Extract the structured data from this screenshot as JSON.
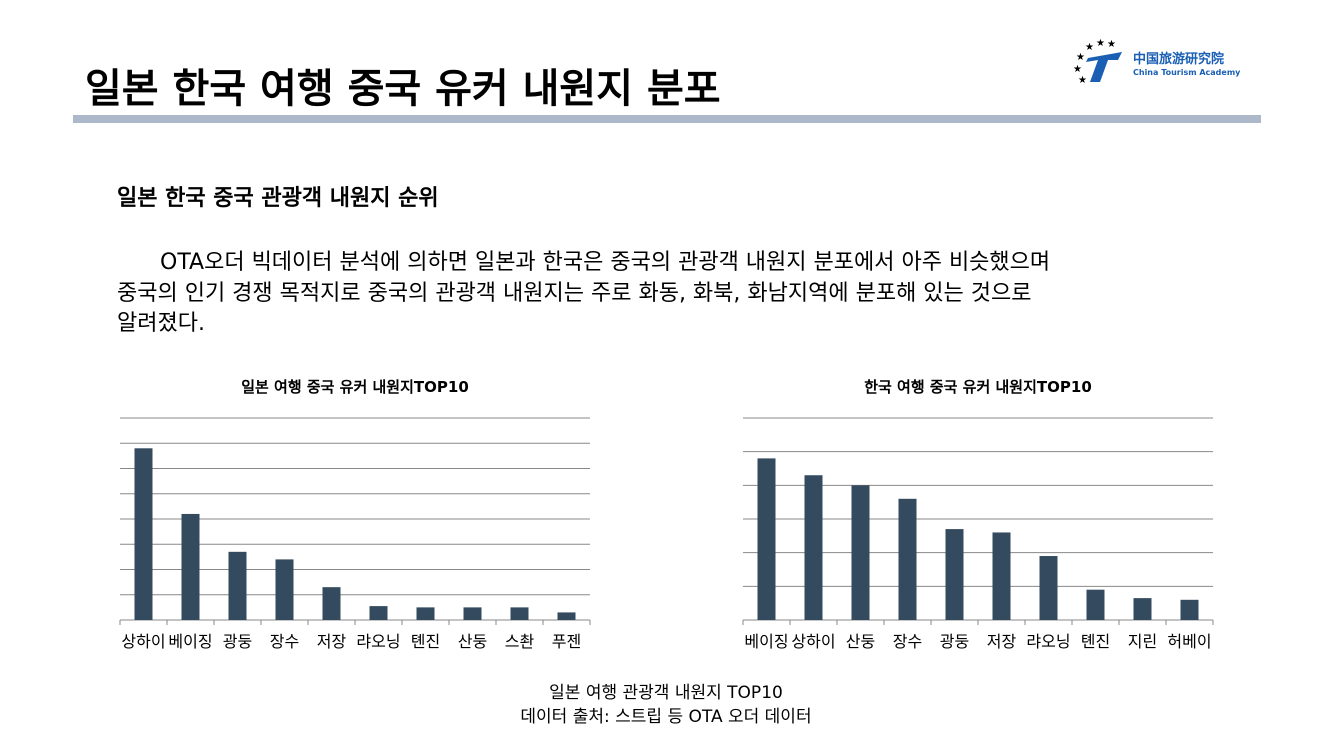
{
  "header": {
    "title": "일본 한국 여행 중국 유커 내원지 분포"
  },
  "logo": {
    "name_cn": "中国旅游研究院",
    "name_en": "China Tourism Academy"
  },
  "section": {
    "heading": "일본 한국 중국 관광객 내원지 순위",
    "paragraph": [
      "OTA오더 빅데이터 분석에 의하면 일본과 한국은 중국의 관광객 내원지 분포에서 아주 비슷했으며",
      "중국의 인기 경쟁 목적지로 중국의 관광객 내원지는 주로 화동, 화북, 화남지역에 분포해 있는 것으로",
      "알려졌다."
    ]
  },
  "chart_data": [
    {
      "type": "bar",
      "title": "일본 여행 중국 유커 내원지TOP10",
      "categories": [
        "상하이",
        "베이징",
        "광둥",
        "장수",
        "저장",
        "랴오닝",
        "톈진",
        "산둥",
        "스촨",
        "푸젠"
      ],
      "values": [
        6.8,
        4.2,
        2.7,
        2.4,
        1.3,
        0.55,
        0.5,
        0.5,
        0.5,
        0.3
      ],
      "color": "#344a5e",
      "ylim": [
        0,
        8
      ],
      "yticks": [
        0,
        1,
        2,
        3,
        4,
        5,
        6,
        7,
        8
      ],
      "grid": true
    },
    {
      "type": "bar",
      "title": "한국 여행 중국 유커 내원지TOP10",
      "categories": [
        "베이징",
        "상하이",
        "산둥",
        "장수",
        "광둥",
        "저장",
        "랴오닝",
        "톈진",
        "지린",
        "허베이"
      ],
      "values": [
        4.8,
        4.3,
        4.0,
        3.6,
        2.7,
        2.6,
        1.9,
        0.9,
        0.65,
        0.6
      ],
      "color": "#344a5e",
      "ylim": [
        0,
        6
      ],
      "yticks": [
        0,
        1,
        2,
        3,
        4,
        5,
        6
      ],
      "grid": true
    }
  ],
  "caption": {
    "line1": "일본 여행 관광객 내원지 TOP10",
    "line2": "데이터 출처: 스트립 등 OTA 오더 데이터"
  }
}
